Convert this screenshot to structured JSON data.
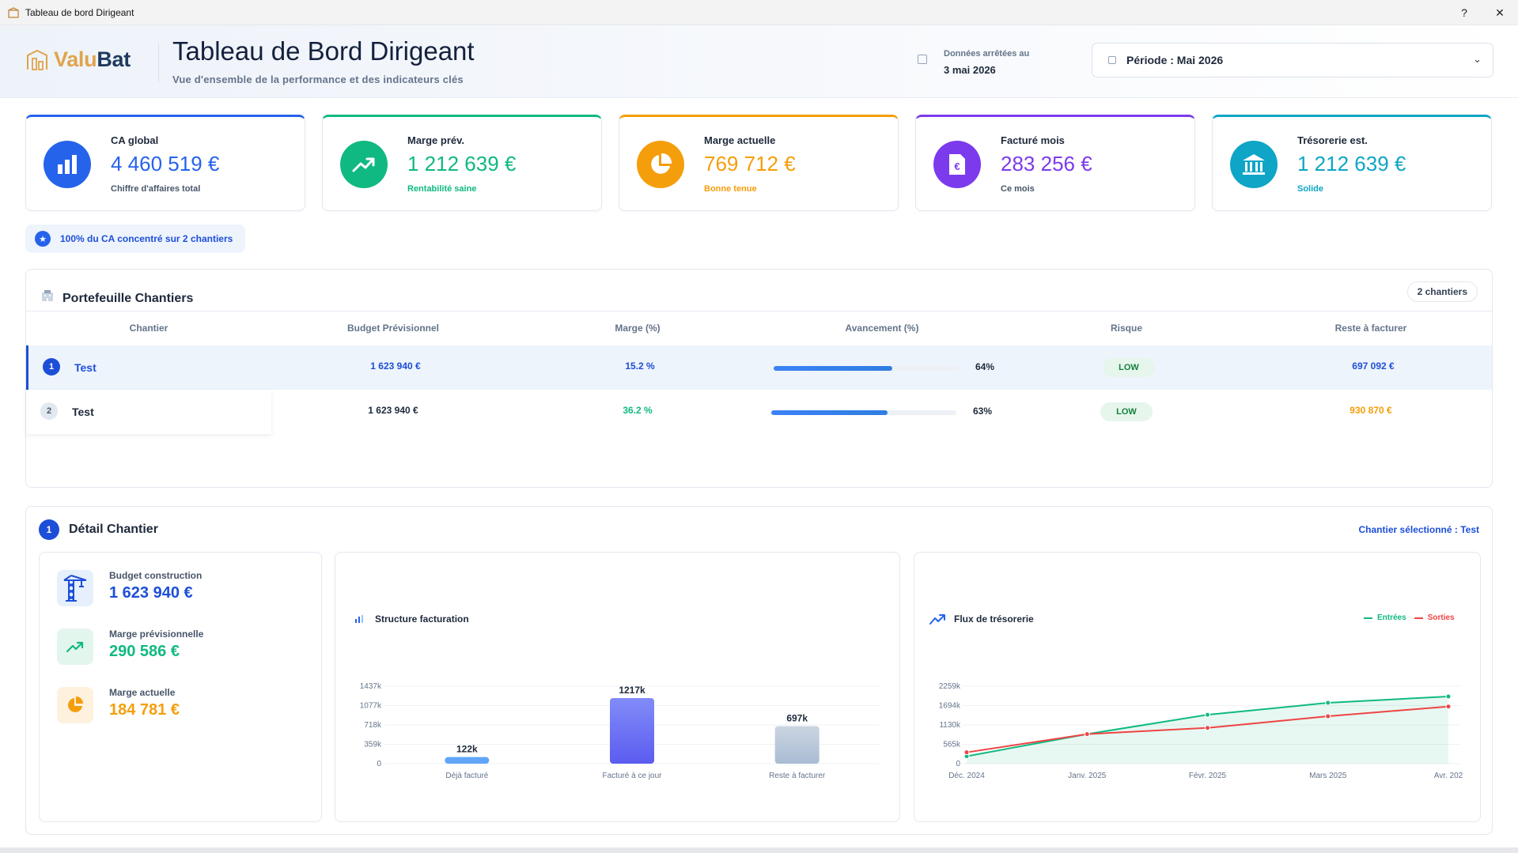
{
  "window": {
    "title": "Tableau de bord Dirigeant",
    "help": "?",
    "close": "✕"
  },
  "brand": {
    "logo_a": "Valu",
    "logo_b": "Bat"
  },
  "header": {
    "title": "Tableau de Bord Dirigeant",
    "subtitle": "Vue d'ensemble de la performance et des indicateurs clés",
    "stamp_label": "Données arrêtées au",
    "stamp_date": "3 mai 2026",
    "period": "Période : Mai 2026",
    "period_chevron": "⌄"
  },
  "kpis": [
    {
      "label": "CA global",
      "value": "4 460 519 €",
      "sub": "Chiffre d'affaires total",
      "color": "#2563eb",
      "icon": "bar-chart-icon"
    },
    {
      "label": "Marge prév.",
      "value": "1 212 639 €",
      "sub": "Rentabilité saine",
      "color": "#10b981",
      "icon": "trend-up-icon"
    },
    {
      "label": "Marge actuelle",
      "value": "769 712 €",
      "sub": "Bonne tenue",
      "color": "#f59e0b",
      "icon": "pie-icon"
    },
    {
      "label": "Facturé mois",
      "value": "283 256 €",
      "sub": "Ce mois",
      "color": "#7c3aed",
      "icon": "euro-doc-icon"
    },
    {
      "label": "Trésorerie est.",
      "value": "1 212 639 €",
      "sub": "Solide",
      "color": "#0ea5c6",
      "icon": "bank-icon"
    }
  ],
  "insight": {
    "text": "100% du CA concentré sur 2 chantiers",
    "icon": "star-icon"
  },
  "portfolio": {
    "title": "Portefeuille Chantiers",
    "badge": "2 chantiers",
    "columns": [
      "Chantier",
      "Budget Prévisionnel",
      "Marge (%)",
      "Avancement (%)",
      "Risque",
      "Reste à facturer"
    ],
    "rows": [
      {
        "num": "1",
        "name": "Test",
        "budget": "1 623 940 €",
        "marge": "15.2 %",
        "progress": 64,
        "progress_label": "64%",
        "risk": "LOW",
        "reste": "697 092 €"
      },
      {
        "num": "2",
        "name": "Test",
        "budget": "1 623 940 €",
        "marge": "36.2 %",
        "progress": 63,
        "progress_label": "63%",
        "risk": "LOW",
        "reste": "930 870 €"
      }
    ]
  },
  "detail": {
    "num": "1",
    "title": "Détail Chantier",
    "selected": "Chantier sélectionné : Test",
    "metrics": [
      {
        "label": "Budget construction",
        "value": "1 623 940 €",
        "color": "#1d4ed8",
        "icon": "crane-icon"
      },
      {
        "label": "Marge prévisionnelle",
        "value": "290 586 €",
        "color": "#10b981",
        "icon": "trend-up-icon"
      },
      {
        "label": "Marge actuelle",
        "value": "184 781 €",
        "color": "#f59e0b",
        "icon": "pie-icon"
      }
    ]
  },
  "chart_data": [
    {
      "type": "bar",
      "title": "Structure facturation",
      "categories": [
        "Déjà facturé",
        "Facturé à ce jour",
        "Reste à facturer"
      ],
      "values": [
        122,
        1217,
        697
      ],
      "value_labels": [
        "122k",
        "1217k",
        "697k"
      ],
      "yticks": [
        "0",
        "359k",
        "718k",
        "1077k",
        "1437k"
      ],
      "ylim": [
        0,
        1437
      ],
      "grid": true
    },
    {
      "type": "line",
      "title": "Flux de trésorerie",
      "x": [
        "Déc. 2024",
        "Janv. 2025",
        "Févr. 2025",
        "Mars 2025",
        "Avr. 202"
      ],
      "series": [
        {
          "name": "Entrées",
          "color": "#10b981",
          "values": [
            217,
            862,
            1426,
            1774,
            1960
          ]
        },
        {
          "name": "Sorties",
          "color": "#ef4444",
          "values": [
            330,
            862,
            1044,
            1382,
            1666
          ]
        }
      ],
      "yticks": [
        "0",
        "565k",
        "1130k",
        "1694k",
        "2259k"
      ],
      "ylim": [
        0,
        2259
      ],
      "legend": "top-right",
      "grid": true
    }
  ]
}
